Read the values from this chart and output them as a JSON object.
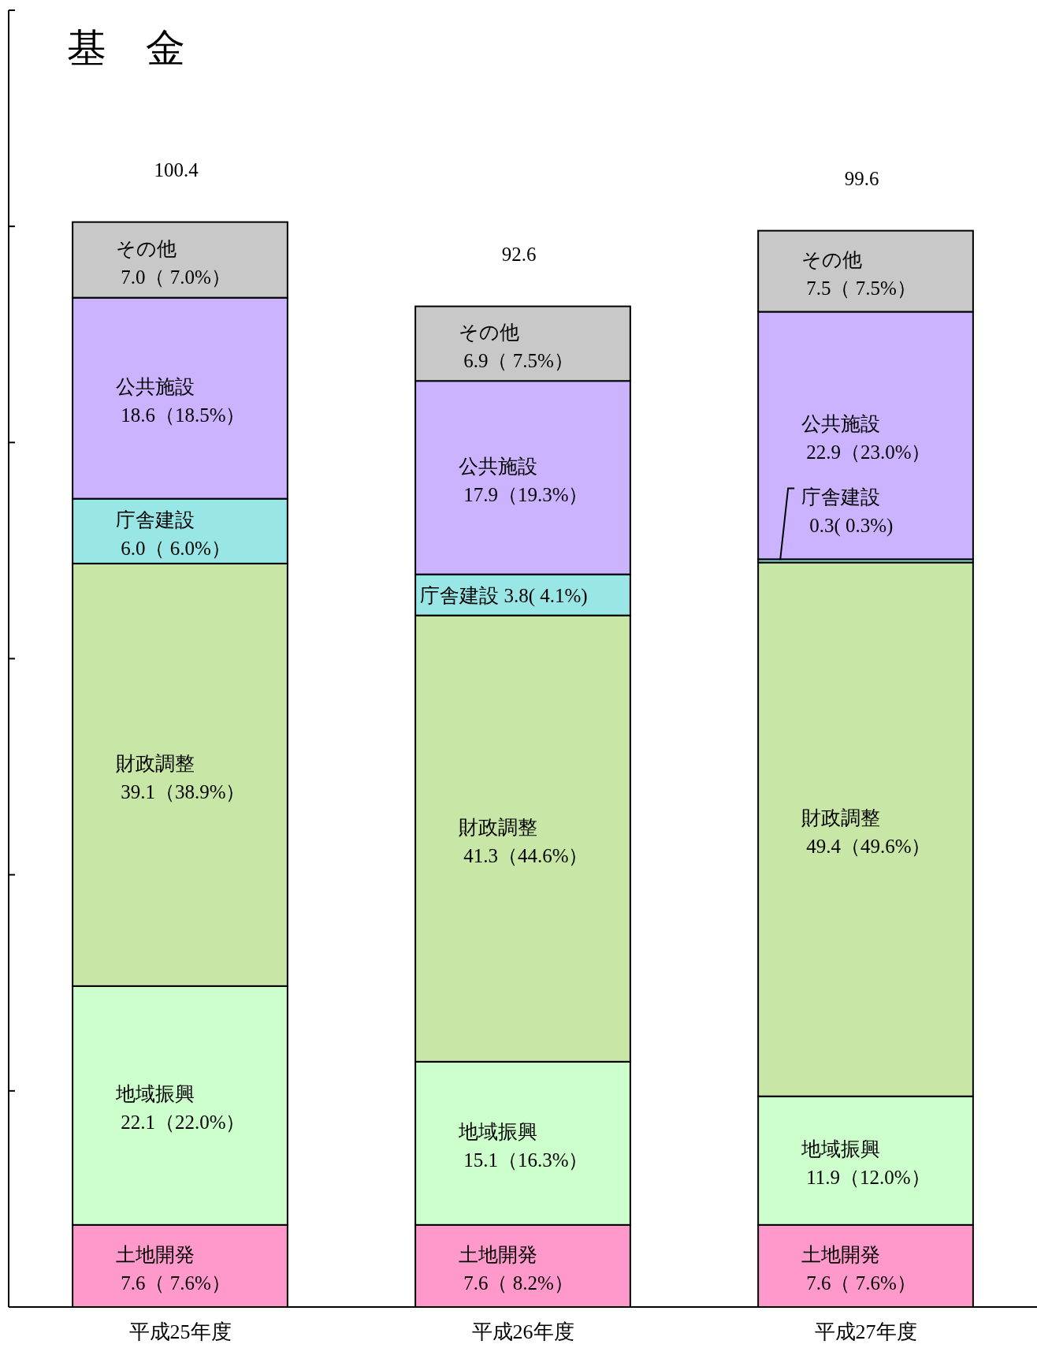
{
  "chart_data": {
    "type": "bar",
    "title": "基　金",
    "stacked": true,
    "categories": [
      "平成25年度",
      "平成26年度",
      "平成27年度"
    ],
    "ylim": [
      0,
      120
    ],
    "yticks": [
      {
        "value": 20,
        "label": null
      },
      {
        "value": 40,
        "label": null
      },
      {
        "value": 60,
        "label": null
      },
      {
        "value": 80,
        "label": null
      },
      {
        "value": 100,
        "label": null
      },
      {
        "value": 120,
        "label": null
      }
    ],
    "series": [
      {
        "name": "土地開発",
        "color": "#ff99cc",
        "values": [
          7.6,
          7.6,
          7.6
        ],
        "value_labels": [
          "7.6（ 7.6%）",
          "7.6（ 8.2%）",
          "7.6（ 7.6%）"
        ]
      },
      {
        "name": "地域振興",
        "color": "#ccffcc",
        "values": [
          22.1,
          15.1,
          11.9
        ],
        "value_labels": [
          "22.1（22.0%）",
          "15.1（16.3%）",
          "11.9（12.0%）"
        ]
      },
      {
        "name": "財政調整",
        "color": "#c8e6a5",
        "values": [
          39.1,
          41.3,
          49.4
        ],
        "value_labels": [
          "39.1（38.9%）",
          "41.3（44.6%）",
          "49.4（49.6%）"
        ]
      },
      {
        "name": "庁舎建設",
        "color": "#99e6e6",
        "values": [
          6.0,
          3.8,
          0.3
        ],
        "value_labels": [
          "6.0（ 6.0%）",
          "3.8( 4.1%)",
          "0.3( 0.3%)"
        ]
      },
      {
        "name": "公共施設",
        "color": "#ccb3ff",
        "values": [
          18.6,
          17.9,
          22.9
        ],
        "value_labels": [
          "18.6（18.5%）",
          "17.9（19.3%）",
          "22.9（23.0%）"
        ]
      },
      {
        "name": "その他",
        "color": "#c8c8c8",
        "values": [
          7.0,
          6.9,
          7.5
        ],
        "value_labels": [
          "7.0（ 7.0%）",
          "6.9（ 7.5%）",
          "7.5（ 7.5%）"
        ]
      }
    ],
    "totals": [
      "100.4",
      "92.6",
      "99.6"
    ]
  }
}
